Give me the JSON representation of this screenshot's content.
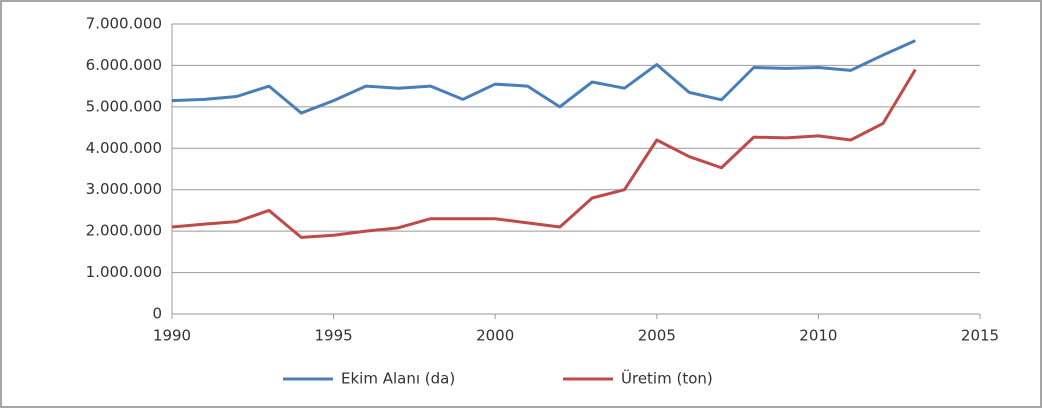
{
  "chart_data": {
    "type": "line",
    "x": [
      1990,
      1991,
      1992,
      1993,
      1994,
      1995,
      1996,
      1997,
      1998,
      1999,
      2000,
      2001,
      2002,
      2003,
      2004,
      2005,
      2006,
      2007,
      2008,
      2009,
      2010,
      2011,
      2012,
      2013
    ],
    "series": [
      {
        "name": "Ekim Alanı (da)",
        "color": "#4a7ebb",
        "values": [
          5150000,
          5180000,
          5250000,
          5500000,
          4850000,
          5150000,
          5500000,
          5450000,
          5500000,
          5180000,
          5550000,
          5500000,
          5000000,
          5600000,
          5450000,
          6020000,
          5350000,
          5170000,
          5950000,
          5930000,
          5950000,
          5880000,
          6250000,
          6600000
        ]
      },
      {
        "name": "Üretim (ton)",
        "color": "#be4b48",
        "values": [
          2100000,
          2170000,
          2230000,
          2500000,
          1850000,
          1900000,
          2000000,
          2080000,
          2300000,
          2300000,
          2300000,
          2200000,
          2100000,
          2800000,
          3000000,
          4200000,
          3800000,
          3530000,
          4270000,
          4250000,
          4300000,
          4200000,
          4600000,
          5900000
        ]
      }
    ],
    "xlim": [
      1990,
      2015
    ],
    "xticks": [
      1990,
      1995,
      2000,
      2005,
      2010,
      2015
    ],
    "ylim": [
      0,
      7000000
    ],
    "yticks": [
      0,
      {
        "value": 1000000,
        "label": "1.000.000"
      },
      {
        "value": 2000000,
        "label": "2.000.000"
      },
      {
        "value": 3000000,
        "label": "3.000.000"
      },
      {
        "value": 4000000,
        "label": "4.000.000"
      },
      {
        "value": 5000000,
        "label": "5.000.000"
      },
      {
        "value": 6000000,
        "label": "6.000.000"
      },
      {
        "value": 7000000,
        "label": "7.000.000"
      }
    ],
    "grid": true,
    "legend": "bottom"
  }
}
